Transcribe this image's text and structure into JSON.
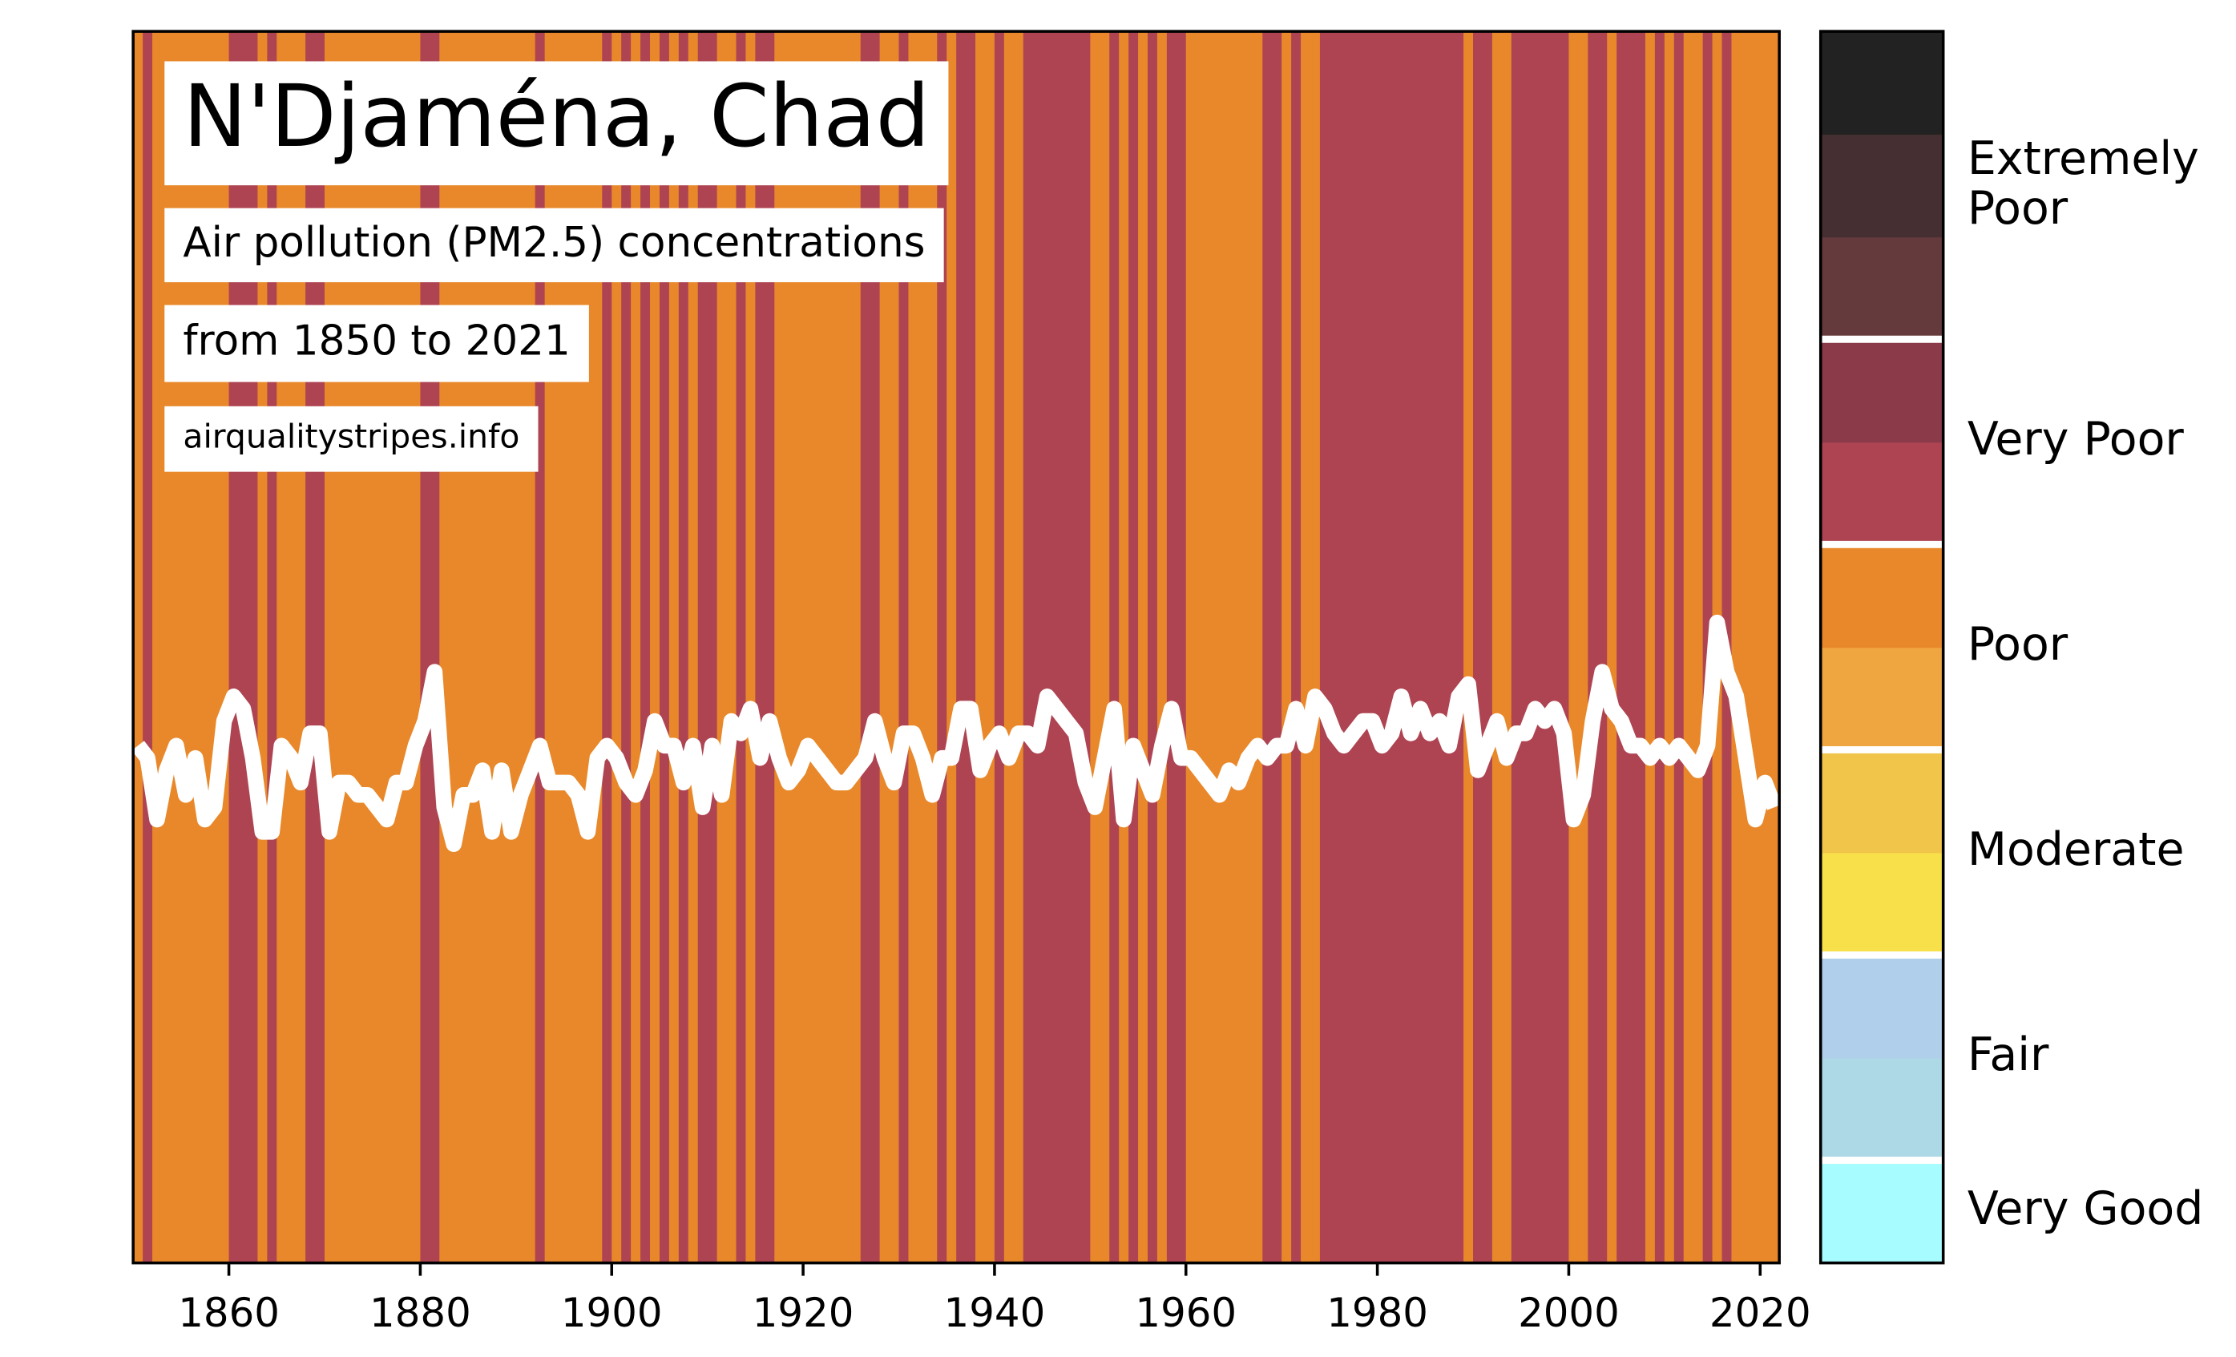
{
  "chart_data": {
    "type": "stripes",
    "title": "N'Djaména, Chad",
    "subtitle": "Air pollution (PM2.5) concentrations",
    "period": "from 1850 to 2021",
    "source": "airqualitystripes.info",
    "x": [
      1850,
      1851,
      1852,
      1853,
      1854,
      1855,
      1856,
      1857,
      1858,
      1859,
      1860,
      1861,
      1862,
      1863,
      1864,
      1865,
      1866,
      1867,
      1868,
      1869,
      1870,
      1871,
      1872,
      1873,
      1874,
      1875,
      1876,
      1877,
      1878,
      1879,
      1880,
      1881,
      1882,
      1883,
      1884,
      1885,
      1886,
      1887,
      1888,
      1889,
      1890,
      1891,
      1892,
      1893,
      1894,
      1895,
      1896,
      1897,
      1898,
      1899,
      1900,
      1901,
      1902,
      1903,
      1904,
      1905,
      1906,
      1907,
      1908,
      1909,
      1910,
      1911,
      1912,
      1913,
      1914,
      1915,
      1916,
      1917,
      1918,
      1919,
      1920,
      1921,
      1922,
      1923,
      1924,
      1925,
      1926,
      1927,
      1928,
      1929,
      1930,
      1931,
      1932,
      1933,
      1934,
      1935,
      1936,
      1937,
      1938,
      1939,
      1940,
      1941,
      1942,
      1943,
      1944,
      1945,
      1946,
      1947,
      1948,
      1949,
      1950,
      1951,
      1952,
      1953,
      1954,
      1955,
      1956,
      1957,
      1958,
      1959,
      1960,
      1961,
      1962,
      1963,
      1964,
      1965,
      1966,
      1967,
      1968,
      1969,
      1970,
      1971,
      1972,
      1973,
      1974,
      1975,
      1976,
      1977,
      1978,
      1979,
      1980,
      1981,
      1982,
      1983,
      1984,
      1985,
      1986,
      1987,
      1988,
      1989,
      1990,
      1991,
      1992,
      1993,
      1994,
      1995,
      1996,
      1997,
      1998,
      1999,
      2000,
      2001,
      2002,
      2003,
      2004,
      2005,
      2006,
      2007,
      2008,
      2009,
      2010,
      2011,
      2012,
      2013,
      2014,
      2015,
      2016,
      2017,
      2018,
      2019,
      2020,
      2021
    ],
    "values": [
      42,
      41,
      36,
      40,
      42,
      38,
      41,
      36,
      37,
      44,
      46,
      45,
      41,
      35,
      35,
      42,
      41,
      39,
      43,
      43,
      35,
      39,
      39,
      38,
      38,
      37,
      36,
      39,
      39,
      42,
      44,
      48,
      37,
      34,
      38,
      38,
      40,
      35,
      40,
      35,
      38,
      40,
      42,
      39,
      39,
      39,
      38,
      35,
      41,
      42,
      41,
      39,
      38,
      40,
      44,
      42,
      42,
      39,
      42,
      37,
      42,
      38,
      44,
      43,
      45,
      41,
      44,
      41,
      39,
      40,
      42,
      41,
      40,
      39,
      39,
      40,
      41,
      44,
      41,
      39,
      43,
      43,
      41,
      38,
      41,
      41,
      45,
      45,
      40,
      42,
      43,
      41,
      43,
      43,
      42,
      46,
      45,
      44,
      43,
      39,
      37,
      41,
      45,
      36,
      42,
      40,
      38,
      42,
      45,
      41,
      41,
      40,
      39,
      38,
      40,
      39,
      41,
      42,
      41,
      42,
      42,
      45,
      42,
      46,
      45,
      43,
      42,
      43,
      44,
      44,
      42,
      43,
      46,
      43,
      45,
      43,
      44,
      42,
      46,
      47,
      40,
      42,
      44,
      41,
      43,
      43,
      45,
      44,
      45,
      43,
      36,
      38,
      44,
      48,
      45,
      44,
      42,
      42,
      41,
      42,
      41,
      42,
      41,
      40,
      42,
      52,
      48,
      46,
      41,
      36,
      39,
      37
    ],
    "stripe_levels": [
      6,
      7,
      6,
      6,
      6,
      6,
      6,
      6,
      6,
      6,
      7,
      7,
      7,
      6,
      7,
      6,
      6,
      6,
      7,
      7,
      6,
      6,
      6,
      6,
      6,
      6,
      6,
      6,
      6,
      6,
      7,
      7,
      6,
      6,
      6,
      6,
      6,
      6,
      6,
      6,
      6,
      6,
      7,
      6,
      6,
      6,
      6,
      6,
      6,
      7,
      6,
      7,
      6,
      7,
      6,
      7,
      6,
      7,
      6,
      7,
      7,
      6,
      6,
      7,
      6,
      7,
      7,
      6,
      6,
      6,
      6,
      6,
      6,
      6,
      6,
      6,
      7,
      7,
      6,
      6,
      7,
      6,
      6,
      6,
      7,
      6,
      7,
      7,
      6,
      6,
      7,
      6,
      6,
      7,
      7,
      7,
      7,
      7,
      7,
      7,
      6,
      6,
      7,
      6,
      7,
      6,
      7,
      6,
      7,
      7,
      6,
      6,
      6,
      6,
      6,
      6,
      6,
      6,
      7,
      7,
      6,
      7,
      6,
      6,
      7,
      7,
      7,
      7,
      7,
      7,
      7,
      7,
      7,
      7,
      7,
      7,
      7,
      7,
      7,
      6,
      7,
      7,
      6,
      6,
      7,
      7,
      7,
      7,
      7,
      7,
      6,
      6,
      7,
      7,
      6,
      7,
      7,
      7,
      6,
      7,
      6,
      7,
      6,
      6,
      7,
      6,
      7,
      6,
      6,
      6,
      6,
      6
    ],
    "line_color": "#ffffff",
    "xlim": [
      1850,
      2022
    ],
    "ylim": [
      0,
      100
    ],
    "xticks": [
      1860,
      1880,
      1900,
      1920,
      1940,
      1960,
      1980,
      2000,
      2020
    ],
    "colorbar": [
      {
        "label": "Very Good",
        "colors": [
          "#a6fcff"
        ]
      },
      {
        "label": "Fair",
        "colors": [
          "#add8e6",
          "#b0cfeb"
        ]
      },
      {
        "label": "Moderate",
        "colors": [
          "#f8e04a",
          "#f1c44a"
        ]
      },
      {
        "label": "Poor",
        "colors": [
          "#efa540",
          "#e8882a"
        ]
      },
      {
        "label": "Very Poor",
        "colors": [
          "#ae4452",
          "#8b3a49"
        ]
      },
      {
        "label": "Extremely Poor",
        "colors": [
          "#643a3c",
          "#452f32",
          "#222222"
        ]
      }
    ]
  }
}
